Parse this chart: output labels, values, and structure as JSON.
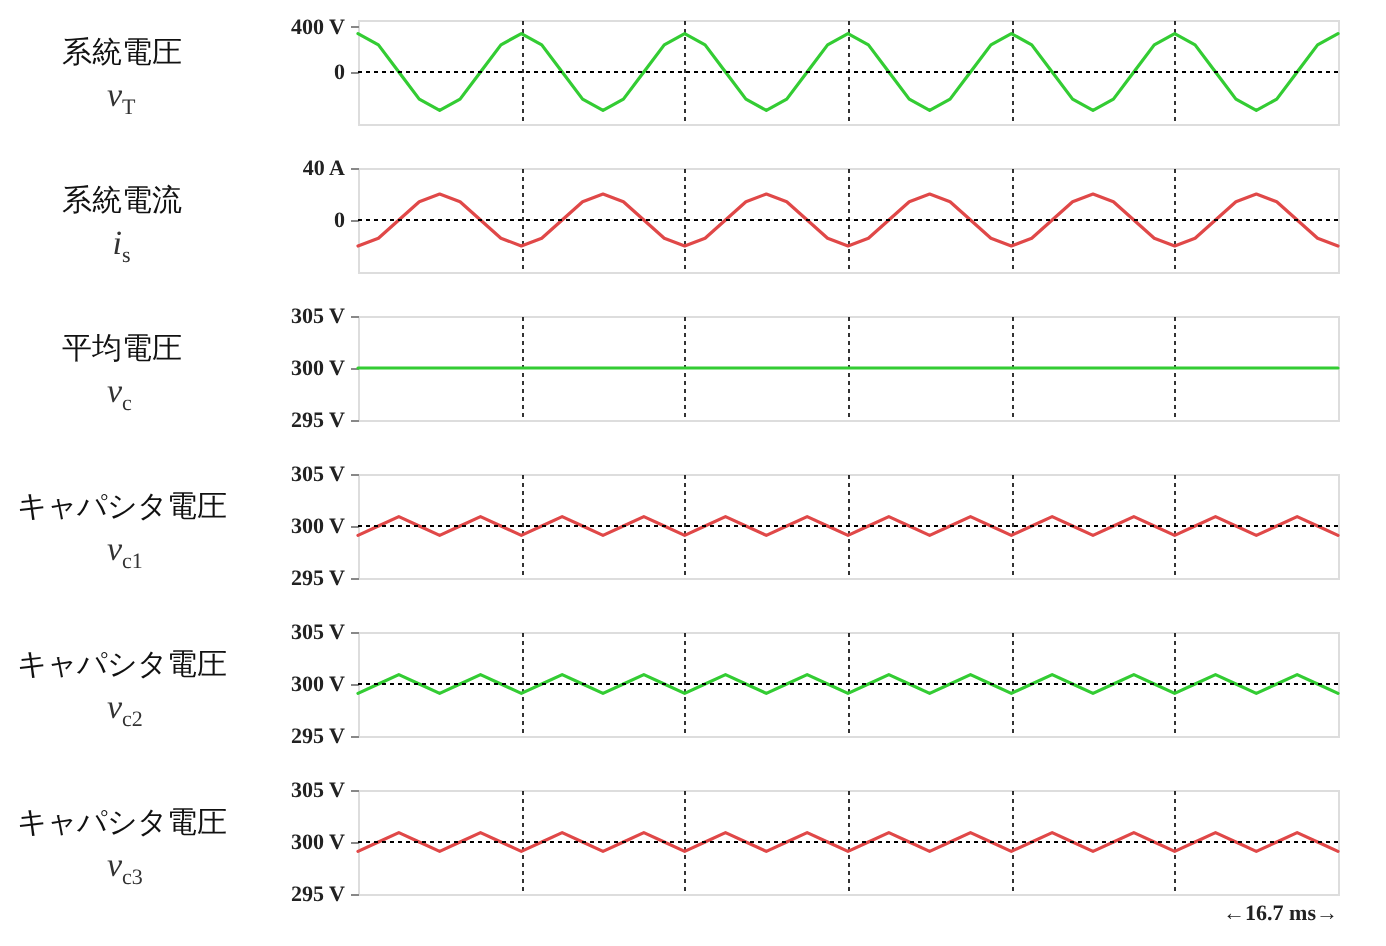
{
  "chart_data": [
    {
      "type": "line",
      "ylabel": "系統電圧\nv$_{T}$",
      "ylim": [
        -460,
        460
      ],
      "yticks": [
        {
          "value": 0,
          "label": "0"
        },
        {
          "value": 400,
          "label": "400 V"
        }
      ],
      "grid": "x",
      "tick_labels": "y",
      "ref_lines": [
        {
          "axis": "y",
          "value": 0,
          "line_style": "dotted",
          "color": "#000000"
        }
      ],
      "categories": [
        null,
        null,
        null,
        null,
        null,
        null,
        null,
        null,
        null,
        null,
        null,
        null,
        null,
        null,
        null,
        null,
        null,
        null,
        null,
        null,
        null,
        null,
        null,
        null,
        null,
        null,
        null,
        null,
        null,
        null,
        null,
        null,
        null,
        null,
        null,
        null,
        null,
        null,
        null,
        null,
        null,
        null,
        null,
        null,
        null,
        null,
        null,
        null,
        null
      ],
      "series": [
        {
          "color": "#33cc33",
          "values": [
            340,
            240,
            0,
            -240,
            -340,
            -240,
            0,
            240,
            340,
            240,
            0,
            -240,
            -340,
            -240,
            0,
            240,
            340,
            240,
            0,
            -240,
            -340,
            -240,
            0,
            240,
            340,
            240,
            0,
            -240,
            -340,
            -240,
            0,
            240,
            340,
            240,
            0,
            -240,
            -340,
            -240,
            0,
            240,
            340,
            240,
            0,
            -240,
            -340,
            -240,
            0,
            240,
            340
          ]
        }
      ]
    },
    {
      "type": "line",
      "ylabel": "系統電流\ni$_{s}$",
      "ylim": [
        -40,
        40
      ],
      "yticks": [
        {
          "value": 0,
          "label": "0"
        },
        {
          "value": 40,
          "label": "40 A"
        }
      ],
      "grid": "x",
      "tick_labels": "y",
      "ref_lines": [
        {
          "axis": "y",
          "value": 0,
          "line_style": "dotted",
          "color": "#000000"
        }
      ],
      "categories": [
        null,
        null,
        null,
        null,
        null,
        null,
        null,
        null,
        null,
        null,
        null,
        null,
        null,
        null,
        null,
        null,
        null,
        null,
        null,
        null,
        null,
        null,
        null,
        null,
        null,
        null,
        null,
        null,
        null,
        null,
        null,
        null,
        null,
        null,
        null,
        null,
        null,
        null,
        null,
        null,
        null,
        null,
        null,
        null,
        null,
        null,
        null,
        null,
        null
      ],
      "series": [
        {
          "color": "#e04848",
          "values": [
            -20,
            -14,
            0,
            14,
            20,
            14,
            0,
            -14,
            -20,
            -14,
            0,
            14,
            20,
            14,
            0,
            -14,
            -20,
            -14,
            0,
            14,
            20,
            14,
            0,
            -14,
            -20,
            -14,
            0,
            14,
            20,
            14,
            0,
            -14,
            -20,
            -14,
            0,
            14,
            20,
            14,
            0,
            -14,
            -20,
            -14,
            0,
            14,
            20,
            14,
            0,
            -14,
            -20
          ]
        }
      ]
    },
    {
      "type": "line",
      "ylabel": "平均電圧\nv$_{c}$",
      "ylim": [
        295,
        305
      ],
      "yticks": [
        {
          "value": 295,
          "label": "295 V"
        },
        {
          "value": 300,
          "label": "300 V"
        },
        {
          "value": 305,
          "label": "305 V"
        }
      ],
      "grid": "x",
      "tick_labels": "y",
      "categories": [
        null,
        null,
        null,
        null,
        null,
        null,
        null,
        null,
        null,
        null,
        null,
        null,
        null,
        null,
        null,
        null,
        null,
        null,
        null,
        null,
        null,
        null,
        null,
        null,
        null,
        null,
        null,
        null,
        null,
        null,
        null,
        null,
        null,
        null,
        null,
        null,
        null,
        null,
        null,
        null,
        null,
        null,
        null,
        null,
        null,
        null,
        null,
        null,
        null
      ],
      "series": [
        {
          "color": "#33cc33",
          "values": [
            300,
            300,
            300,
            300,
            300,
            300,
            300,
            300,
            300,
            300,
            300,
            300,
            300,
            300,
            300,
            300,
            300,
            300,
            300,
            300,
            300,
            300,
            300,
            300,
            300,
            300,
            300,
            300,
            300,
            300,
            300,
            300,
            300,
            300,
            300,
            300,
            300,
            300,
            300,
            300,
            300,
            300,
            300,
            300,
            300,
            300,
            300,
            300,
            300
          ]
        }
      ]
    },
    {
      "type": "line",
      "ylabel": "キャパシタ電圧\nv$_{c1}$",
      "ylim": [
        295,
        305
      ],
      "yticks": [
        {
          "value": 295,
          "label": "295 V"
        },
        {
          "value": 300,
          "label": "300 V"
        },
        {
          "value": 305,
          "label": "305 V"
        }
      ],
      "grid": "x",
      "tick_labels": "y",
      "ref_lines": [
        {
          "axis": "y",
          "value": 300,
          "line_style": "dotted",
          "color": "#000000"
        }
      ],
      "categories": [
        null,
        null,
        null,
        null,
        null,
        null,
        null,
        null,
        null,
        null,
        null,
        null,
        null,
        null,
        null,
        null,
        null,
        null,
        null,
        null,
        null,
        null,
        null,
        null,
        null,
        null,
        null,
        null,
        null,
        null,
        null,
        null,
        null,
        null,
        null,
        null,
        null,
        null,
        null,
        null,
        null,
        null,
        null,
        null,
        null,
        null,
        null,
        null,
        null
      ],
      "series": [
        {
          "color": "#e04848",
          "values": [
            299.1,
            300,
            300.9,
            300,
            299.1,
            300,
            300.9,
            300,
            299.1,
            300,
            300.9,
            300,
            299.1,
            300,
            300.9,
            300,
            299.1,
            300,
            300.9,
            300,
            299.1,
            300,
            300.9,
            300,
            299.1,
            300,
            300.9,
            300,
            299.1,
            300,
            300.9,
            300,
            299.1,
            300,
            300.9,
            300,
            299.1,
            300,
            300.9,
            300,
            299.1,
            300,
            300.9,
            300,
            299.1,
            300,
            300.9,
            300,
            299.1
          ]
        }
      ]
    },
    {
      "type": "line",
      "ylabel": "キャパシタ電圧\nv$_{c2}$",
      "ylim": [
        295,
        305
      ],
      "yticks": [
        {
          "value": 295,
          "label": "295 V"
        },
        {
          "value": 300,
          "label": "300 V"
        },
        {
          "value": 305,
          "label": "305 V"
        }
      ],
      "grid": "x",
      "tick_labels": "y",
      "ref_lines": [
        {
          "axis": "y",
          "value": 300,
          "line_style": "dotted",
          "color": "#000000"
        }
      ],
      "categories": [
        null,
        null,
        null,
        null,
        null,
        null,
        null,
        null,
        null,
        null,
        null,
        null,
        null,
        null,
        null,
        null,
        null,
        null,
        null,
        null,
        null,
        null,
        null,
        null,
        null,
        null,
        null,
        null,
        null,
        null,
        null,
        null,
        null,
        null,
        null,
        null,
        null,
        null,
        null,
        null,
        null,
        null,
        null,
        null,
        null,
        null,
        null,
        null,
        null
      ],
      "series": [
        {
          "color": "#33cc33",
          "values": [
            299.1,
            300,
            300.9,
            300,
            299.1,
            300,
            300.9,
            300,
            299.1,
            300,
            300.9,
            300,
            299.1,
            300,
            300.9,
            300,
            299.1,
            300,
            300.9,
            300,
            299.1,
            300,
            300.9,
            300,
            299.1,
            300,
            300.9,
            300,
            299.1,
            300,
            300.9,
            300,
            299.1,
            300,
            300.9,
            300,
            299.1,
            300,
            300.9,
            300,
            299.1,
            300,
            300.9,
            300,
            299.1,
            300,
            300.9,
            300,
            299.1
          ]
        }
      ]
    },
    {
      "type": "line",
      "ylabel": "キャパシタ電圧\nv$_{c3}$",
      "ylim": [
        295,
        305
      ],
      "yticks": [
        {
          "value": 295,
          "label": "295 V"
        },
        {
          "value": 300,
          "label": "300 V"
        },
        {
          "value": 305,
          "label": "305 V"
        }
      ],
      "grid": "x",
      "tick_labels": "y",
      "ref_lines": [
        {
          "axis": "y",
          "value": 300,
          "line_style": "dotted",
          "color": "#000000"
        }
      ],
      "annotations": [
        "←16.7 ms→"
      ],
      "categories": [
        null,
        null,
        null,
        null,
        null,
        null,
        null,
        null,
        null,
        null,
        null,
        null,
        null,
        null,
        null,
        null,
        null,
        null,
        null,
        null,
        null,
        null,
        null,
        null,
        null,
        null,
        null,
        null,
        null,
        null,
        null,
        null,
        null,
        null,
        null,
        null,
        null,
        null,
        null,
        null,
        null,
        null,
        null,
        null,
        null,
        null,
        null,
        null,
        null
      ],
      "series": [
        {
          "color": "#e04848",
          "values": [
            299.1,
            300,
            300.9,
            300,
            299.1,
            300,
            300.9,
            300,
            299.1,
            300,
            300.9,
            300,
            299.1,
            300,
            300.9,
            300,
            299.1,
            300,
            300.9,
            300,
            299.1,
            300,
            300.9,
            300,
            299.1,
            300,
            300.9,
            300,
            299.1,
            300,
            300.9,
            300,
            299.1,
            300,
            300.9,
            300,
            299.1,
            300,
            300.9,
            300,
            299.1,
            300,
            300.9,
            300,
            299.1,
            300,
            300.9,
            300,
            299.1
          ]
        }
      ]
    }
  ]
}
